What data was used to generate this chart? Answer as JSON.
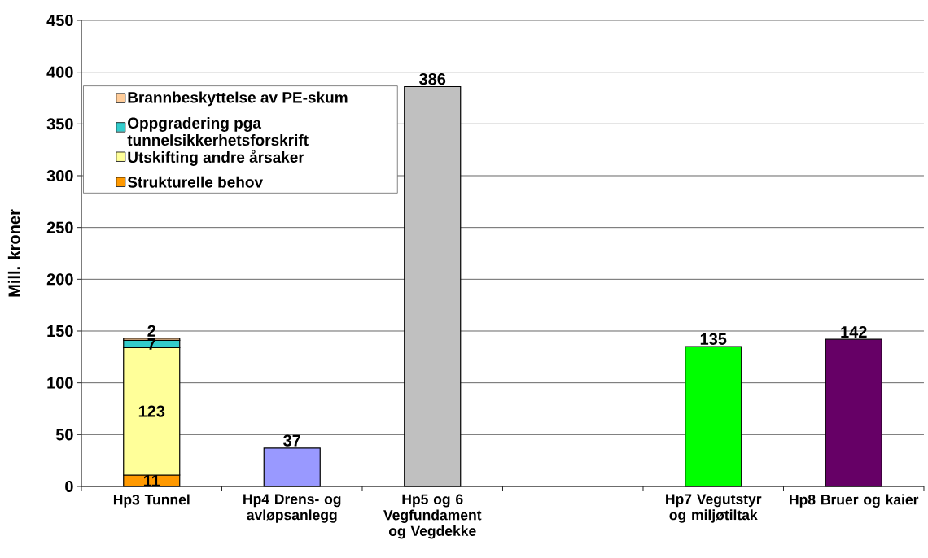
{
  "chart_data": {
    "type": "bar",
    "stacked": true,
    "categories": [
      "Hp3 Tunnel",
      "Hp4 Drens- og avløpsanlegg",
      "Hp5 og 6 Vegfundament og Vegdekke",
      null,
      "Hp7 Vegutstyr og miljøtiltak",
      "Hp8 Bruer og kaier"
    ],
    "ylabel": "Mill. kroner",
    "ylim": [
      0,
      450
    ],
    "yticks": [
      0,
      50,
      100,
      150,
      200,
      250,
      300,
      350,
      400,
      450
    ],
    "grid": "y",
    "legend": "top left",
    "data_labels": true,
    "series": [
      {
        "name": "Strukturelle behov",
        "color": "#ff9900",
        "values": [
          11,
          null,
          null,
          null,
          null,
          null
        ]
      },
      {
        "name": "Utskifting andre årsaker",
        "color": "#ffff99",
        "values": [
          123,
          null,
          null,
          null,
          null,
          null
        ]
      },
      {
        "name": "Oppgradering pga tunnelsikkerhetsforskrift",
        "color": "#33cccc",
        "values": [
          7,
          null,
          null,
          null,
          null,
          null
        ]
      },
      {
        "name": "Brannbeskyttelse av PE-skum",
        "color": "#ffcc99",
        "values": [
          2,
          null,
          null,
          null,
          null,
          null
        ]
      },
      {
        "colors": [
          null,
          "#9999ff",
          "#c0c0c0",
          null,
          "#00ff00",
          "#660066"
        ],
        "values": [
          null,
          37,
          386,
          null,
          135,
          142
        ]
      }
    ]
  }
}
